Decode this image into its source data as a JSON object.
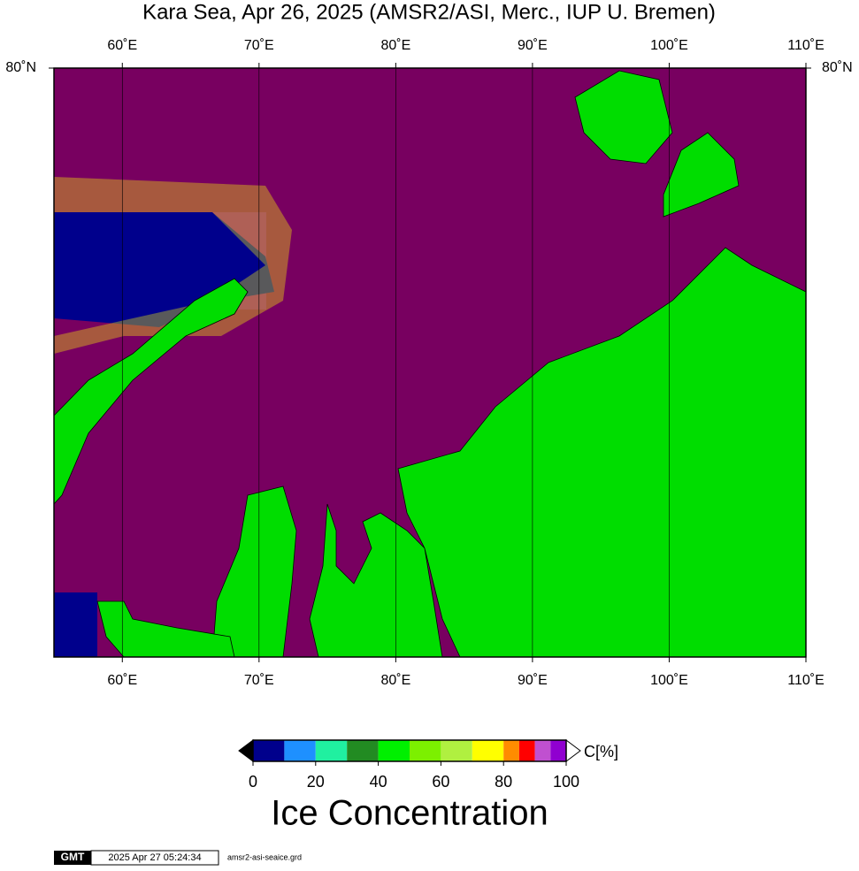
{
  "map": {
    "title": "Kara Sea, Apr 26, 2025 (AMSR2/ASI, Merc., IUP U. Bremen)",
    "xlim": [
      55,
      110
    ],
    "lon_ticks": [
      {
        "value": 60,
        "label": "60˚E"
      },
      {
        "value": 70,
        "label": "70˚E"
      },
      {
        "value": 80,
        "label": "80˚E"
      },
      {
        "value": 90,
        "label": "90˚E"
      },
      {
        "value": 100,
        "label": "100˚E"
      },
      {
        "value": 110,
        "label": "110˚E"
      }
    ],
    "lat_tick": {
      "value": 80,
      "label": "80˚N"
    }
  },
  "colorbar": {
    "label": "C[%]",
    "title": "Ice Concentration",
    "range": [
      0,
      100
    ],
    "ticks": [
      0,
      20,
      40,
      60,
      80,
      100
    ],
    "bounds": [
      0,
      10,
      20,
      30,
      40,
      50,
      60,
      70,
      80,
      85,
      90,
      95,
      100
    ],
    "colors": [
      "#00008c",
      "#1e90ff",
      "#20f0a0",
      "#228b22",
      "#00f000",
      "#7cf000",
      "#b0f040",
      "#ffff00",
      "#ff8c00",
      "#ff0000",
      "#c050d0",
      "#9000d0"
    ]
  },
  "footer": {
    "logo": "GMT",
    "timestamp": "2025 Apr 27 05:24:34",
    "file": "amsr2-asi-seaice.grd"
  }
}
